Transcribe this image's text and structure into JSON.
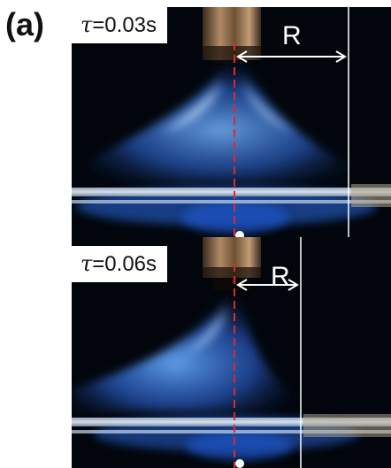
{
  "figure": {
    "panel_label": "(a)",
    "panels": [
      {
        "tau_symbol": "τ",
        "time_value": "=0.03s",
        "radius_label": "R"
      },
      {
        "tau_symbol": "τ",
        "time_value": "=0.06s",
        "radius_label": "R"
      }
    ]
  },
  "colors": {
    "background": "#02060c",
    "flame": "#3f86ff",
    "flame_core": "#eaf6ff",
    "centerline": "#e0282a",
    "annotation": "#ffffff",
    "nozzle": "#8a6a4a",
    "rod": "#d8d8d8"
  },
  "icons": [
    "nozzle-image",
    "flame-image",
    "glass-rod-image",
    "centerline-marker",
    "radius-arrow"
  ]
}
